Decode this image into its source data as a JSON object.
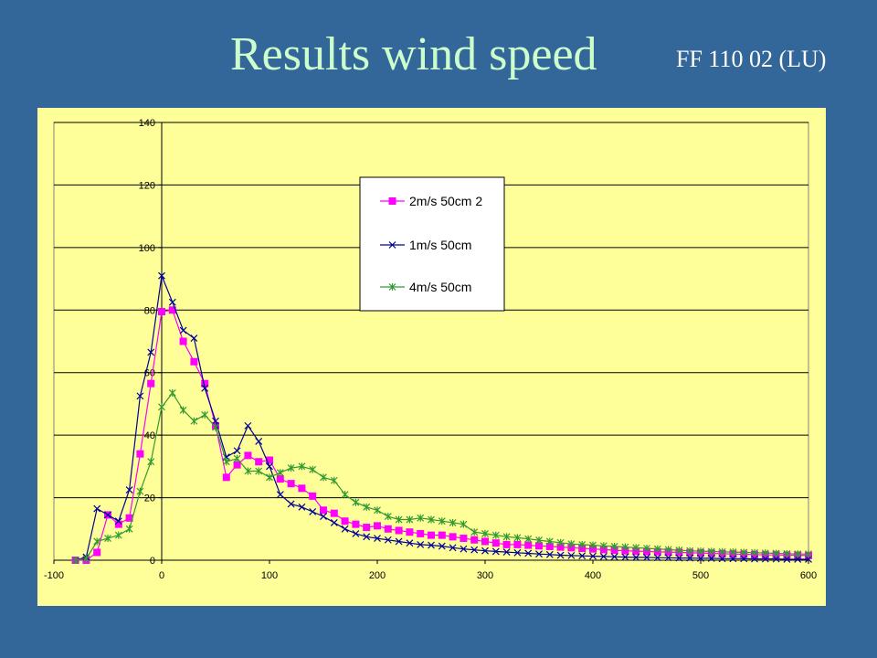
{
  "slide": {
    "title": "Results wind speed",
    "subtitle": "FF 110 02 (LU)"
  },
  "chart_data": {
    "type": "line",
    "title": "",
    "xlabel": "",
    "ylabel": "",
    "xlim": [
      -100,
      600
    ],
    "ylim": [
      0,
      140
    ],
    "x_ticks": [
      -100,
      0,
      100,
      200,
      300,
      400,
      500,
      600
    ],
    "y_ticks": [
      0,
      20,
      40,
      60,
      80,
      100,
      120,
      140
    ],
    "grid": "horizontal",
    "legend_position": "top-center",
    "colors": {
      "background": "#336699",
      "plot_area": "#ffff99",
      "title": "#ccffcc"
    },
    "series": [
      {
        "name": "2m/s 50cm 2",
        "color": "#ff00ff",
        "marker": "square",
        "x": [
          -80,
          -70,
          -60,
          -50,
          -40,
          -30,
          -20,
          -10,
          0,
          10,
          20,
          30,
          40,
          50,
          60,
          70,
          80,
          90,
          100,
          110,
          120,
          130,
          140,
          150,
          160,
          170,
          180,
          190,
          200,
          210,
          220,
          230,
          240,
          250,
          260,
          270,
          280,
          290,
          300,
          310,
          320,
          330,
          340,
          350,
          360,
          370,
          380,
          390,
          400,
          410,
          420,
          430,
          440,
          450,
          460,
          470,
          480,
          490,
          500,
          510,
          520,
          530,
          540,
          550,
          560,
          570,
          580,
          590,
          600
        ],
        "y": [
          0,
          0,
          2.5,
          14.5,
          11.5,
          13.5,
          34,
          56.5,
          79.5,
          80,
          70,
          63.5,
          56.5,
          43,
          26.5,
          30.5,
          33.5,
          31.5,
          32,
          26,
          24.5,
          23,
          20.5,
          16,
          15,
          12.5,
          11.5,
          10.5,
          11,
          10,
          9.5,
          9,
          8.5,
          8,
          8,
          7.5,
          7,
          6.5,
          6,
          5.5,
          5,
          5,
          4.8,
          4.6,
          4.4,
          4.2,
          4,
          3.8,
          3.6,
          3.4,
          3.2,
          3.0,
          2.9,
          2.8,
          2.7,
          2.6,
          2.5,
          2.4,
          2.3,
          2.2,
          2.1,
          2.0,
          1.9,
          1.8,
          1.7,
          1.7,
          1.6,
          1.6,
          1.5
        ]
      },
      {
        "name": "1m/s 50cm",
        "color": "#000099",
        "marker": "x",
        "x": [
          -80,
          -70,
          -60,
          -50,
          -40,
          -30,
          -20,
          -10,
          0,
          10,
          20,
          30,
          40,
          50,
          60,
          70,
          80,
          90,
          100,
          110,
          120,
          130,
          140,
          150,
          160,
          170,
          180,
          190,
          200,
          210,
          220,
          230,
          240,
          250,
          260,
          270,
          280,
          290,
          300,
          310,
          320,
          330,
          340,
          350,
          360,
          370,
          380,
          390,
          400,
          410,
          420,
          430,
          440,
          450,
          460,
          470,
          480,
          490,
          500,
          510,
          520,
          530,
          540,
          550,
          560,
          570,
          580,
          590,
          600
        ],
        "y": [
          0,
          1,
          16.5,
          14.5,
          12.5,
          22.5,
          52.5,
          66.5,
          91,
          82.5,
          73.5,
          71,
          55,
          44.5,
          33,
          35,
          43,
          38,
          30,
          21,
          18,
          17,
          15.5,
          14,
          12,
          10,
          8.5,
          7.5,
          7,
          6.5,
          6,
          5.5,
          5,
          4.8,
          4.5,
          4,
          3.6,
          3.3,
          3,
          2.8,
          2.6,
          2.4,
          2.2,
          2,
          1.8,
          1.6,
          1.5,
          1.4,
          1.3,
          1.2,
          1.1,
          1.0,
          0.9,
          0.9,
          0.8,
          0.8,
          0.7,
          0.7,
          0.6,
          0.6,
          0.5,
          0.5,
          0.5,
          0.4,
          0.4,
          0.4,
          0.3,
          0.3,
          0.3
        ]
      },
      {
        "name": "4m/s 50cm",
        "color": "#339933",
        "marker": "star",
        "x": [
          -80,
          -70,
          -60,
          -50,
          -40,
          -30,
          -20,
          -10,
          0,
          10,
          20,
          30,
          40,
          50,
          60,
          70,
          80,
          90,
          100,
          110,
          120,
          130,
          140,
          150,
          160,
          170,
          180,
          190,
          200,
          210,
          220,
          230,
          240,
          250,
          260,
          270,
          280,
          290,
          300,
          310,
          320,
          330,
          340,
          350,
          360,
          370,
          380,
          390,
          400,
          410,
          420,
          430,
          440,
          450,
          460,
          470,
          480,
          490,
          500,
          510,
          520,
          530,
          540,
          550,
          560,
          570,
          580,
          590,
          600
        ],
        "y": [
          0,
          0.5,
          6,
          7,
          8,
          10,
          22,
          31.5,
          49,
          53.5,
          48,
          44.5,
          46.5,
          42.5,
          31.5,
          32.5,
          28.5,
          28.5,
          26.5,
          28,
          29.5,
          30,
          29,
          26.5,
          25.5,
          21,
          18.5,
          17,
          16,
          14,
          13,
          13,
          13.5,
          13,
          12.5,
          12,
          11.5,
          9,
          8.5,
          8,
          7.5,
          7.2,
          6.8,
          6.4,
          6,
          5.6,
          5.2,
          5,
          4.8,
          4.6,
          4.4,
          4.2,
          4,
          3.8,
          3.6,
          3.4,
          3.2,
          3,
          2.9,
          2.8,
          2.7,
          2.6,
          2.5,
          2.4,
          2.3,
          2.2,
          2.1,
          2,
          2
        ]
      }
    ]
  }
}
